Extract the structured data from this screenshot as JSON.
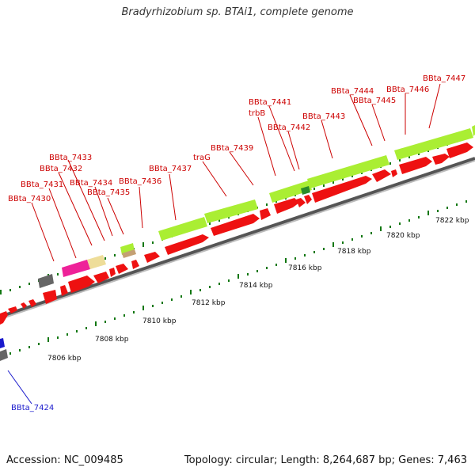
{
  "title": "Bradyrhizobium sp. BTAi1, complete genome",
  "footer": {
    "accession": "Accession: NC_009485",
    "summary": "Topology: circular; Length: 8,264,687 bp; Genes: 7,463"
  },
  "colors": {
    "cds": "#ee1111",
    "cds_light": "#aaee33",
    "rrna": "#ee2299",
    "trna": "#eedd99",
    "misc": "#666666",
    "tick": "#117711",
    "label_red": "#cc0000",
    "label_blue": "#1a1acc"
  },
  "scale_labels": [
    "7806 kbp",
    "7808 kbp",
    "7810 kbp",
    "7812 kbp",
    "7814 kbp",
    "7816 kbp",
    "7818 kbp",
    "7820 kbp",
    "7822 kbp"
  ],
  "gene_labels": [
    "BBta_7430",
    "BBta_7431",
    "BBta_7432",
    "BBta_7433",
    "BBta_7434",
    "BBta_7435",
    "BBta_7436",
    "BBta_7437",
    "traG",
    "BBta_7439",
    "trbB",
    "BBta_7441",
    "BBta_7442",
    "BBta_7443",
    "BBta_7444",
    "BBta_7445",
    "BBta_7446",
    "BBta_7447"
  ],
  "reverse_label": "BBta_7424"
}
